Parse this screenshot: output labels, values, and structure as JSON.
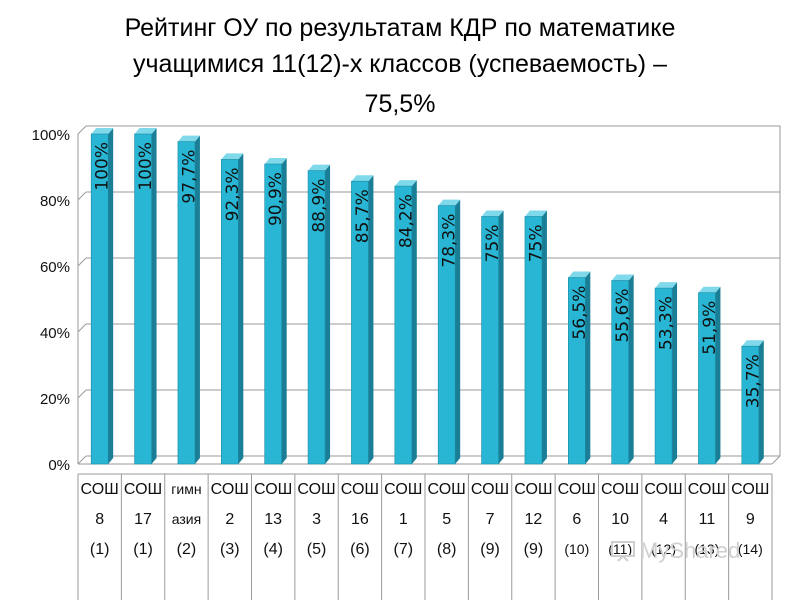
{
  "title": {
    "line1": "Рейтинг ОУ по результатам КДР по математике",
    "line2": "учащимися 11(12)-х классов (успеваемость) –",
    "line3": "75,5%"
  },
  "watermark": "MyShared",
  "colors": {
    "bar_front": "#28b6d4",
    "bar_side": "#1a7f96",
    "bar_top": "#7fd9ea",
    "grid": "#9a9a9a",
    "label": "#111111"
  },
  "chart_data": {
    "type": "bar",
    "categories": [
      [
        "СОШ",
        "8",
        "(1)"
      ],
      [
        "СОШ",
        "17",
        "(1)"
      ],
      [
        "гимн",
        "азия",
        "(2)"
      ],
      [
        "СОШ",
        "2",
        "(3)"
      ],
      [
        "СОШ",
        "13",
        "(4)"
      ],
      [
        "СОШ",
        "3",
        "(5)"
      ],
      [
        "СОШ",
        "16",
        "(6)"
      ],
      [
        "СОШ",
        "1",
        "(7)"
      ],
      [
        "СОШ",
        "5",
        "(8)"
      ],
      [
        "СОШ",
        "7",
        "(9)"
      ],
      [
        "СОШ",
        "12",
        "(9)"
      ],
      [
        "СОШ",
        "6",
        "(10)"
      ],
      [
        "СОШ",
        "10",
        "(11)"
      ],
      [
        "СОШ",
        "4",
        "(12)"
      ],
      [
        "СОШ",
        "11",
        "(13)"
      ],
      [
        "СОШ",
        "9",
        "(14)"
      ]
    ],
    "values": [
      100,
      100,
      97.7,
      92.3,
      90.9,
      88.9,
      85.7,
      84.2,
      78.3,
      75,
      75,
      56.5,
      55.6,
      53.3,
      51.9,
      35.7
    ],
    "data_labels": [
      "100%",
      "100%",
      "97,7%",
      "92,3%",
      "90,9%",
      "88,9%",
      "85,7%",
      "84,2%",
      "78,3%",
      "75%",
      "75%",
      "56,5%",
      "55,6%",
      "53,3%",
      "51,9%",
      "35,7%"
    ],
    "y_ticks": [
      "0%",
      "20%",
      "40%",
      "60%",
      "80%",
      "100%"
    ],
    "ylim": [
      0,
      100
    ],
    "grid": true,
    "legend": "none"
  }
}
